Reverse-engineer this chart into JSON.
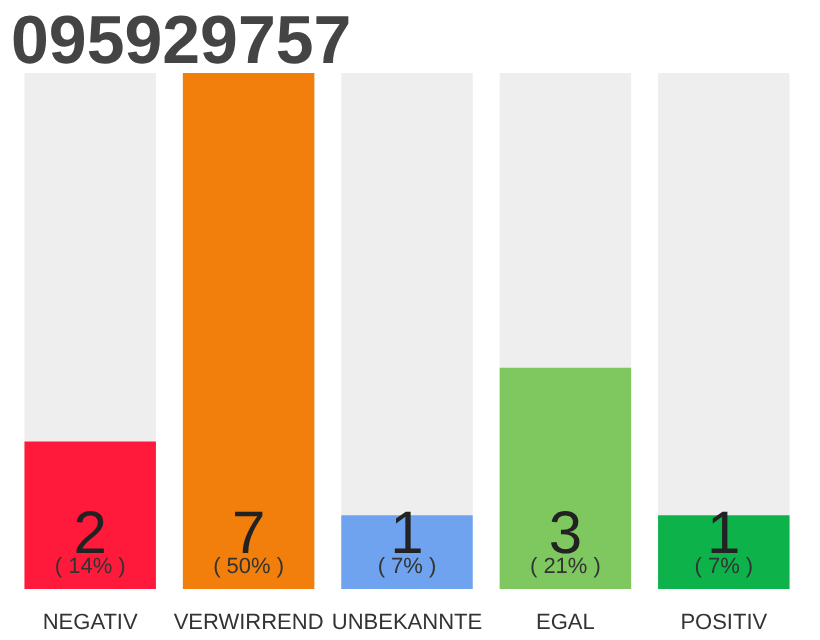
{
  "chart_data": {
    "type": "bar",
    "title": "095929757",
    "categories": [
      "NEGATIV",
      "VERWIRREND",
      "UNBEKANNTE",
      "EGAL",
      "POSITIV"
    ],
    "values": [
      2,
      7,
      1,
      3,
      1
    ],
    "colors": [
      "#ff1a3c",
      "#f27f0c",
      "#6fa3ef",
      "#7fc85f",
      "#0db34a"
    ],
    "ylim": [
      0,
      7
    ],
    "data_labels": true,
    "grid": false,
    "tick_labels": "x",
    "annotations": [
      "( 14% )",
      "( 50% )",
      "( 7% )",
      "( 21% )",
      "( 7% )"
    ]
  }
}
